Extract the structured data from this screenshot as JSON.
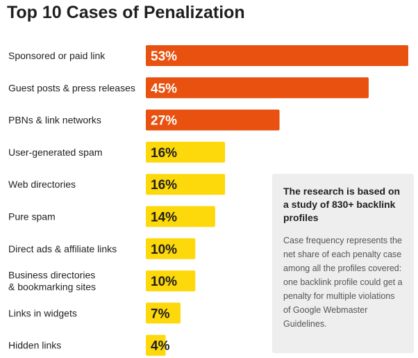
{
  "chart_data": {
    "type": "bar",
    "orientation": "horizontal",
    "title": "Top 10 Cases of Penalization",
    "categories": [
      [
        "Sponsored or paid link"
      ],
      [
        "Guest posts & press releases"
      ],
      [
        "PBNs & link networks"
      ],
      [
        "User-generated spam"
      ],
      [
        "Web directories"
      ],
      [
        "Pure spam"
      ],
      [
        "Direct ads & affiliate links"
      ],
      [
        "Business directories",
        "& bookmarking sites"
      ],
      [
        "Links in widgets"
      ],
      [
        "Hidden links"
      ]
    ],
    "values": [
      53,
      45,
      27,
      16,
      16,
      14,
      10,
      10,
      7,
      4
    ],
    "value_labels": [
      "53%",
      "45%",
      "27%",
      "16%",
      "16%",
      "14%",
      "10%",
      "10%",
      "7%",
      "4%"
    ],
    "xlim": [
      0,
      53
    ],
    "grid": false,
    "legend": "none",
    "colors": {
      "high": "#e8510f",
      "low": "#fdd80a",
      "high_text": "#ffffff",
      "low_text": "#1f1f1f"
    },
    "high_threshold": 20
  },
  "info_box": {
    "heading": "The research is based on a study of 830+ backlink profiles",
    "body": "Case frequency represents the net share of each penalty case among all the profiles covered: one backlink profile could get a penalty for multiple violations of Google Webmaster Guidelines."
  }
}
